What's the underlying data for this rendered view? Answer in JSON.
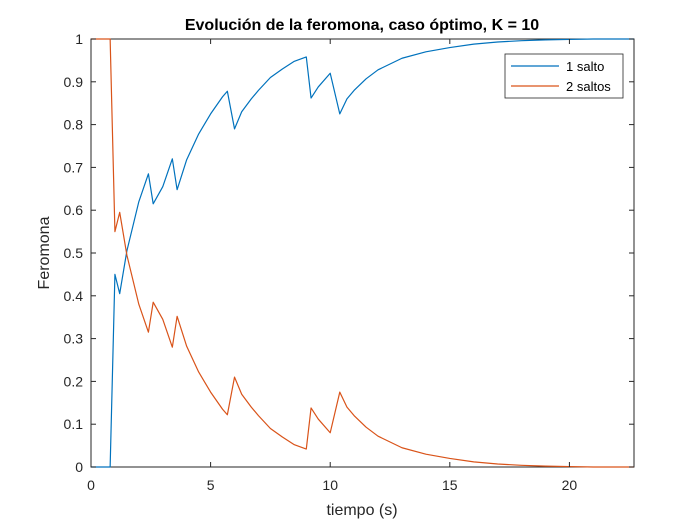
{
  "chart_data": {
    "type": "line",
    "title": "Evolución de la feromona, caso óptimo, K = 10",
    "xlabel": "tiempo (s)",
    "ylabel": "Feromona",
    "xlim": [
      0,
      22.7
    ],
    "ylim": [
      0,
      1
    ],
    "xticks": [
      0,
      5,
      10,
      15,
      20
    ],
    "xtick_labels": [
      "0",
      "5",
      "10",
      "15",
      "20"
    ],
    "yticks": [
      0,
      0.1,
      0.2,
      0.3,
      0.4,
      0.5,
      0.6,
      0.7,
      0.8,
      0.9,
      1
    ],
    "ytick_labels": [
      "0",
      "0.1",
      "0.2",
      "0.3",
      "0.4",
      "0.5",
      "0.6",
      "0.7",
      "0.8",
      "0.9",
      "1"
    ],
    "grid": false,
    "legend_position": "top-right",
    "series": [
      {
        "name": "1 salto",
        "color": "#0072BD",
        "x": [
          0,
          0.8,
          1.0,
          1.2,
          1.5,
          2.0,
          2.4,
          2.6,
          3.0,
          3.4,
          3.6,
          4.0,
          4.5,
          5.0,
          5.5,
          5.7,
          6.0,
          6.3,
          6.7,
          7.0,
          7.5,
          8.0,
          8.5,
          9.0,
          9.2,
          9.5,
          10.0,
          10.4,
          10.7,
          11.0,
          11.5,
          12.0,
          13.0,
          14.0,
          15.0,
          16.0,
          17.0,
          18.0,
          19.0,
          20.0,
          21.0,
          22.7
        ],
        "y": [
          0,
          0,
          0.45,
          0.405,
          0.505,
          0.62,
          0.685,
          0.615,
          0.655,
          0.72,
          0.648,
          0.718,
          0.778,
          0.825,
          0.865,
          0.878,
          0.79,
          0.83,
          0.86,
          0.88,
          0.91,
          0.93,
          0.948,
          0.958,
          0.862,
          0.888,
          0.92,
          0.825,
          0.86,
          0.88,
          0.907,
          0.928,
          0.955,
          0.97,
          0.98,
          0.988,
          0.993,
          0.996,
          0.998,
          0.999,
          1.0,
          1.0
        ]
      },
      {
        "name": "2 saltos",
        "color": "#D95319",
        "x": [
          0,
          0.8,
          1.0,
          1.2,
          1.5,
          2.0,
          2.4,
          2.6,
          3.0,
          3.4,
          3.6,
          4.0,
          4.5,
          5.0,
          5.5,
          5.7,
          6.0,
          6.3,
          6.7,
          7.0,
          7.5,
          8.0,
          8.5,
          9.0,
          9.2,
          9.5,
          10.0,
          10.4,
          10.7,
          11.0,
          11.5,
          12.0,
          13.0,
          14.0,
          15.0,
          16.0,
          17.0,
          18.0,
          19.0,
          20.0,
          21.0,
          22.7
        ],
        "y": [
          1,
          1,
          0.55,
          0.595,
          0.495,
          0.38,
          0.315,
          0.385,
          0.345,
          0.28,
          0.352,
          0.282,
          0.222,
          0.175,
          0.135,
          0.122,
          0.21,
          0.17,
          0.14,
          0.12,
          0.09,
          0.07,
          0.052,
          0.042,
          0.138,
          0.112,
          0.08,
          0.175,
          0.14,
          0.12,
          0.093,
          0.072,
          0.045,
          0.03,
          0.02,
          0.012,
          0.007,
          0.004,
          0.002,
          0.001,
          0,
          0
        ]
      }
    ]
  }
}
